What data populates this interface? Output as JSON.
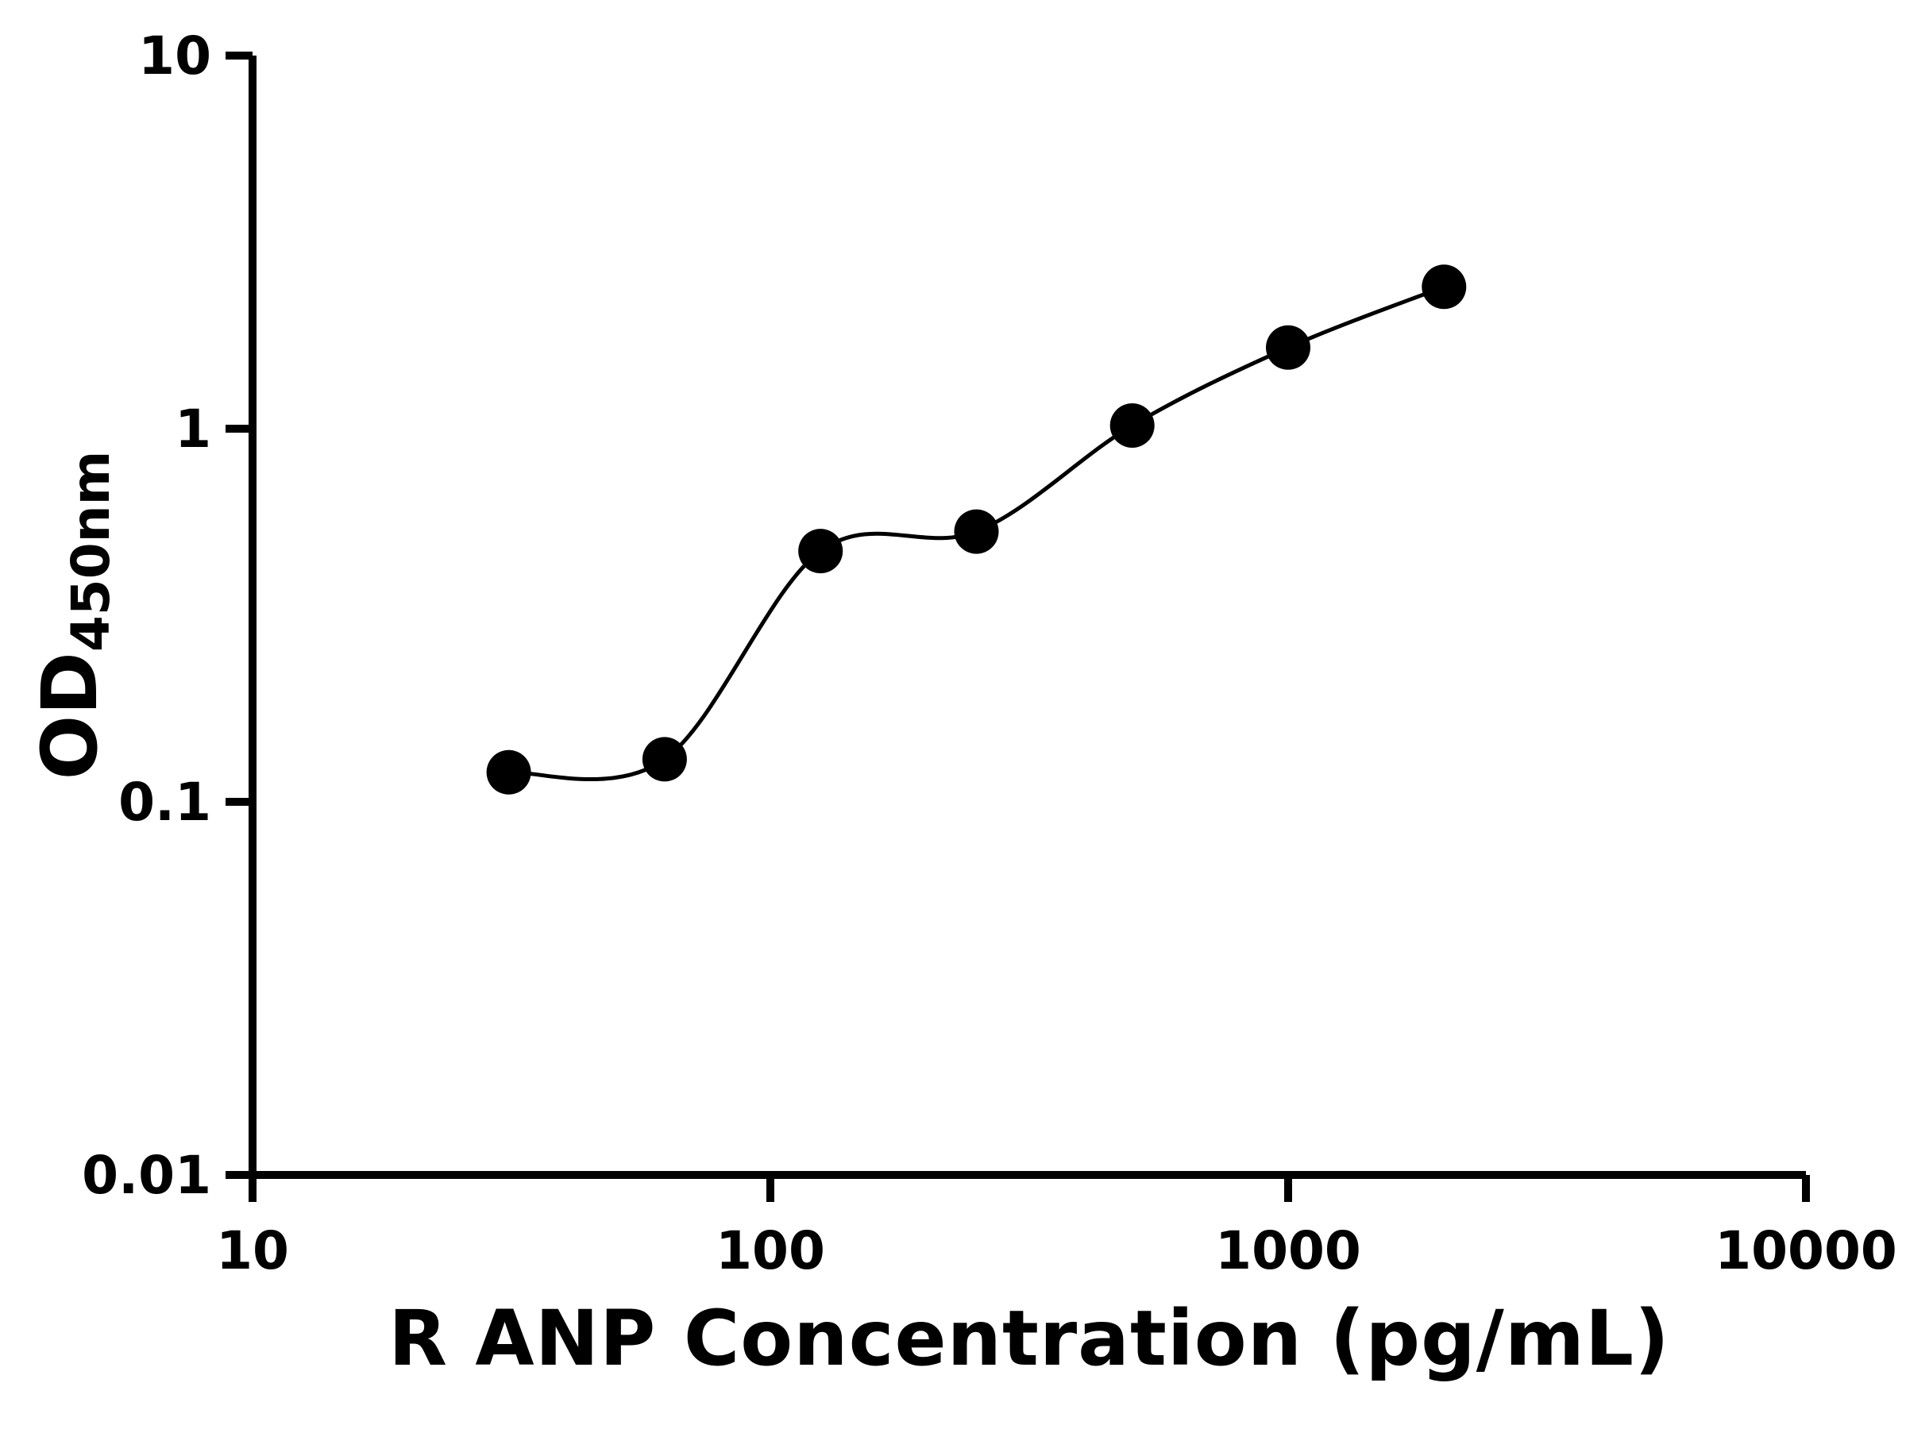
{
  "chart_data": {
    "type": "scatter",
    "title": "",
    "xlabel": "R ANP Concentration (pg/mL)",
    "ylabel_main": "OD",
    "ylabel_sub": "450nm",
    "x_scale": "log",
    "y_scale": "log",
    "xlim": [
      10,
      10000
    ],
    "ylim": [
      0.01,
      10
    ],
    "grid": false,
    "legend": false,
    "x": [
      31.25,
      62.5,
      125,
      250,
      500,
      1000,
      2000
    ],
    "y": [
      0.12,
      0.13,
      0.47,
      0.53,
      1.02,
      1.65,
      2.4
    ],
    "x_ticks": [
      {
        "value": 10,
        "label": "10"
      },
      {
        "value": 100,
        "label": "100"
      },
      {
        "value": 1000,
        "label": "1000"
      },
      {
        "value": 10000,
        "label": "10000"
      }
    ],
    "y_ticks": [
      {
        "value": 0.01,
        "label": "0.01"
      },
      {
        "value": 0.1,
        "label": "0.1"
      },
      {
        "value": 1,
        "label": "1"
      },
      {
        "value": 10,
        "label": "10"
      }
    ],
    "line_style": "smooth fit curve through standard points",
    "marker_color": "#000000",
    "line_color": "#000000",
    "axis_color": "#000000",
    "background_color": "#ffffff"
  }
}
